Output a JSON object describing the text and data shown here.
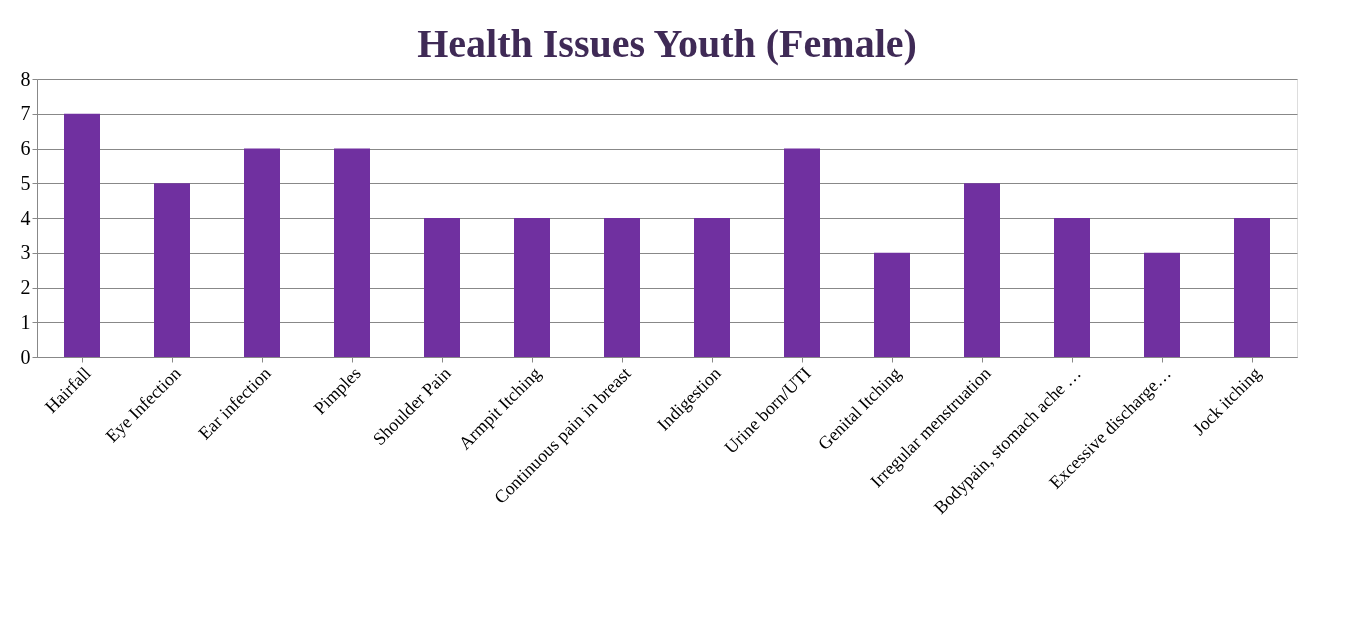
{
  "chart_data": {
    "type": "bar",
    "title": "Health Issues Youth (Female)",
    "categories": [
      "Hairfall",
      "Eye Infection",
      "Ear infection",
      "Pimples",
      "Shoulder Pain",
      "Armpit Itching",
      "Continuous pain in breast",
      "Indigestion",
      "Urine born/UTI",
      "Genital Itching",
      "Irregular menstruation",
      "Bodypain, stomach ache …",
      "Excessive discharge…",
      "Jock itching"
    ],
    "values": [
      7,
      5,
      6,
      6,
      4,
      4,
      4,
      4,
      6,
      3,
      5,
      4,
      3,
      4
    ],
    "color": "#7030a0",
    "ylim": [
      0,
      8
    ],
    "yticks": [
      0,
      1,
      2,
      3,
      4,
      5,
      6,
      7,
      8
    ],
    "grid": "y"
  }
}
